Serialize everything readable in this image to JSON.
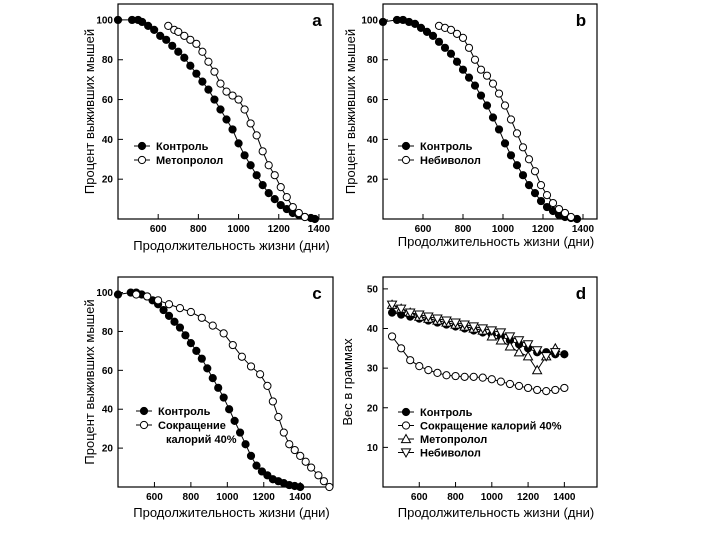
{
  "chart_data": [
    {
      "type": "line",
      "panel": "a",
      "xlabel": "Продолжительность жизни (дни)",
      "ylabel": "Процент выживших мышей",
      "xticks": [
        600,
        800,
        1000,
        1200,
        1400
      ],
      "yticks": [
        20,
        40,
        60,
        80,
        100
      ],
      "xlim": [
        400,
        1470
      ],
      "ylim": [
        0,
        108
      ],
      "legend": [
        {
          "name": "Контроль",
          "marker": "filled-circle"
        },
        {
          "name": "Метопролол",
          "marker": "open-circle"
        }
      ],
      "series": [
        {
          "name": "Контроль",
          "marker": "filled-circle",
          "x": [
            400,
            470,
            500,
            520,
            550,
            580,
            610,
            640,
            670,
            700,
            730,
            760,
            790,
            820,
            850,
            880,
            910,
            940,
            970,
            1000,
            1030,
            1060,
            1090,
            1120,
            1150,
            1180,
            1210,
            1240,
            1270,
            1300,
            1330,
            1360,
            1380
          ],
          "y": [
            100,
            100,
            100,
            99,
            97,
            95,
            92,
            90,
            87,
            84,
            81,
            77,
            73,
            69,
            65,
            60,
            55,
            50,
            45,
            38,
            32,
            27,
            22,
            17,
            13,
            10,
            7,
            5,
            3,
            2,
            1,
            0.5,
            0
          ]
        },
        {
          "name": "Метопролол",
          "marker": "open-circle",
          "x": [
            650,
            680,
            700,
            730,
            760,
            790,
            820,
            850,
            880,
            910,
            940,
            970,
            1000,
            1030,
            1060,
            1090,
            1120,
            1150,
            1180,
            1210,
            1240,
            1270,
            1300,
            1330
          ],
          "y": [
            97,
            95,
            94,
            92,
            90,
            88,
            84,
            79,
            74,
            68,
            64,
            62,
            60,
            55,
            48,
            42,
            34,
            27,
            22,
            16,
            11,
            6,
            3,
            1
          ]
        }
      ]
    },
    {
      "type": "line",
      "panel": "b",
      "xlabel": "Продолжительность жизни (дни)",
      "ylabel": "Процент выживших мышей",
      "xticks": [
        600,
        800,
        1000,
        1200,
        1400
      ],
      "yticks": [
        20,
        40,
        60,
        80,
        100
      ],
      "xlim": [
        400,
        1470
      ],
      "ylim": [
        0,
        108
      ],
      "legend": [
        {
          "name": "Контроль",
          "marker": "filled-circle"
        },
        {
          "name": "Небиволол",
          "marker": "open-circle"
        }
      ],
      "series": [
        {
          "name": "Контроль",
          "marker": "filled-circle",
          "x": [
            400,
            470,
            500,
            530,
            560,
            590,
            620,
            650,
            680,
            710,
            740,
            770,
            800,
            830,
            860,
            890,
            920,
            950,
            980,
            1010,
            1040,
            1070,
            1100,
            1130,
            1160,
            1190,
            1220,
            1250,
            1280,
            1310,
            1340,
            1370
          ],
          "y": [
            99,
            100,
            100,
            99,
            98,
            96,
            94,
            92,
            89,
            86,
            83,
            79,
            75,
            71,
            67,
            62,
            57,
            51,
            45,
            38,
            32,
            27,
            22,
            17,
            13,
            9,
            6,
            4,
            2,
            1,
            0.5,
            0
          ]
        },
        {
          "name": "Небиволол",
          "marker": "open-circle",
          "x": [
            680,
            710,
            740,
            770,
            800,
            830,
            860,
            890,
            920,
            950,
            980,
            1010,
            1040,
            1070,
            1100,
            1130,
            1160,
            1190,
            1220,
            1250,
            1280,
            1310,
            1340
          ],
          "y": [
            97,
            96,
            95,
            93,
            91,
            86,
            80,
            75,
            72,
            68,
            63,
            57,
            50,
            43,
            36,
            30,
            24,
            17,
            12,
            8,
            5,
            3,
            1
          ]
        }
      ]
    },
    {
      "type": "line",
      "panel": "c",
      "xlabel": "Продолжительность жизни (дни)",
      "ylabel": "Процент выживших мышей",
      "xticks": [
        600,
        800,
        1000,
        1200,
        1400
      ],
      "yticks": [
        20,
        40,
        60,
        80,
        100
      ],
      "xlim": [
        400,
        1580
      ],
      "ylim": [
        0,
        108
      ],
      "legend": [
        {
          "name": "Контроль",
          "marker": "filled-circle"
        },
        {
          "name": "Сокращение калорий 40%",
          "marker": "open-circle",
          "lines": [
            "Сокращение",
            "калорий 40%"
          ]
        }
      ],
      "series": [
        {
          "name": "Контроль",
          "marker": "filled-circle",
          "x": [
            400,
            470,
            500,
            530,
            560,
            590,
            620,
            650,
            680,
            710,
            740,
            770,
            800,
            830,
            860,
            890,
            920,
            950,
            980,
            1010,
            1040,
            1070,
            1100,
            1130,
            1160,
            1190,
            1220,
            1250,
            1280,
            1310,
            1340,
            1370,
            1400
          ],
          "y": [
            99,
            100,
            100,
            99,
            98,
            96,
            94,
            91,
            88,
            85,
            82,
            78,
            74,
            70,
            66,
            61,
            56,
            51,
            46,
            40,
            34,
            28,
            22,
            16,
            11,
            8,
            6,
            4,
            3,
            2,
            1,
            0.5,
            0
          ]
        },
        {
          "name": "Сокращение калорий 40%",
          "marker": "open-circle",
          "x": [
            500,
            560,
            620,
            680,
            740,
            800,
            860,
            920,
            980,
            1030,
            1080,
            1130,
            1180,
            1220,
            1250,
            1280,
            1310,
            1340,
            1370,
            1400,
            1430,
            1460,
            1500,
            1530,
            1560
          ],
          "y": [
            99,
            98,
            96,
            94,
            92,
            90,
            87,
            83,
            79,
            73,
            67,
            62,
            58,
            52,
            44,
            36,
            28,
            22,
            19,
            16,
            13,
            10,
            6,
            3,
            0
          ]
        }
      ]
    },
    {
      "type": "line",
      "panel": "d",
      "xlabel": "Продолжительность жизни (дни)",
      "ylabel": "Вес в граммах",
      "xticks": [
        600,
        800,
        1000,
        1200,
        1400
      ],
      "yticks": [
        10,
        20,
        30,
        40,
        50
      ],
      "xlim": [
        400,
        1580
      ],
      "ylim": [
        0,
        53
      ],
      "legend": [
        {
          "name": "Контроль",
          "marker": "filled-circle"
        },
        {
          "name": "Сокращение калорий 40%",
          "marker": "open-circle"
        },
        {
          "name": "Метопролол",
          "marker": "open-triangle-up"
        },
        {
          "name": "Небиволол",
          "marker": "open-triangle-down"
        }
      ],
      "series": [
        {
          "name": "Контроль",
          "marker": "filled-circle",
          "x": [
            450,
            500,
            550,
            600,
            650,
            700,
            750,
            800,
            850,
            900,
            950,
            1000,
            1050,
            1100,
            1150,
            1200,
            1250,
            1300,
            1350,
            1400
          ],
          "y": [
            44,
            43.5,
            43,
            42.5,
            42,
            41.5,
            41,
            40.5,
            40,
            39.5,
            39,
            38.5,
            38,
            37,
            36,
            35,
            34,
            34,
            33.5,
            33.5
          ]
        },
        {
          "name": "Сокращение калорий 40%",
          "marker": "open-circle",
          "x": [
            450,
            500,
            550,
            600,
            650,
            700,
            750,
            800,
            850,
            900,
            950,
            1000,
            1050,
            1100,
            1150,
            1200,
            1250,
            1300,
            1350,
            1400
          ],
          "y": [
            38,
            35,
            32,
            30.5,
            29.5,
            28.8,
            28.2,
            28,
            27.8,
            27.8,
            27.6,
            27.2,
            26.6,
            26,
            25.5,
            25,
            24.5,
            24.2,
            24.5,
            25
          ]
        },
        {
          "name": "Метопролол",
          "marker": "open-triangle-up",
          "x": [
            450,
            500,
            550,
            600,
            650,
            700,
            750,
            800,
            850,
            900,
            950,
            1000,
            1050,
            1100,
            1150,
            1200,
            1250,
            1300,
            1350
          ],
          "y": [
            46,
            45,
            44,
            43,
            42.5,
            42,
            41.5,
            41,
            40.5,
            40,
            39.5,
            38,
            37,
            35.5,
            34,
            33,
            29.5,
            33,
            35
          ]
        },
        {
          "name": "Небиволол",
          "marker": "open-triangle-down",
          "x": [
            450,
            500,
            550,
            600,
            650,
            700,
            750,
            800,
            850,
            900,
            950,
            1000,
            1050,
            1100,
            1150,
            1200,
            1250,
            1300,
            1350
          ],
          "y": [
            46,
            45,
            44,
            43.5,
            43,
            42.5,
            42,
            41.5,
            41,
            40.5,
            40,
            39.5,
            39,
            38,
            37,
            36,
            34.5,
            33,
            34
          ]
        }
      ]
    }
  ]
}
